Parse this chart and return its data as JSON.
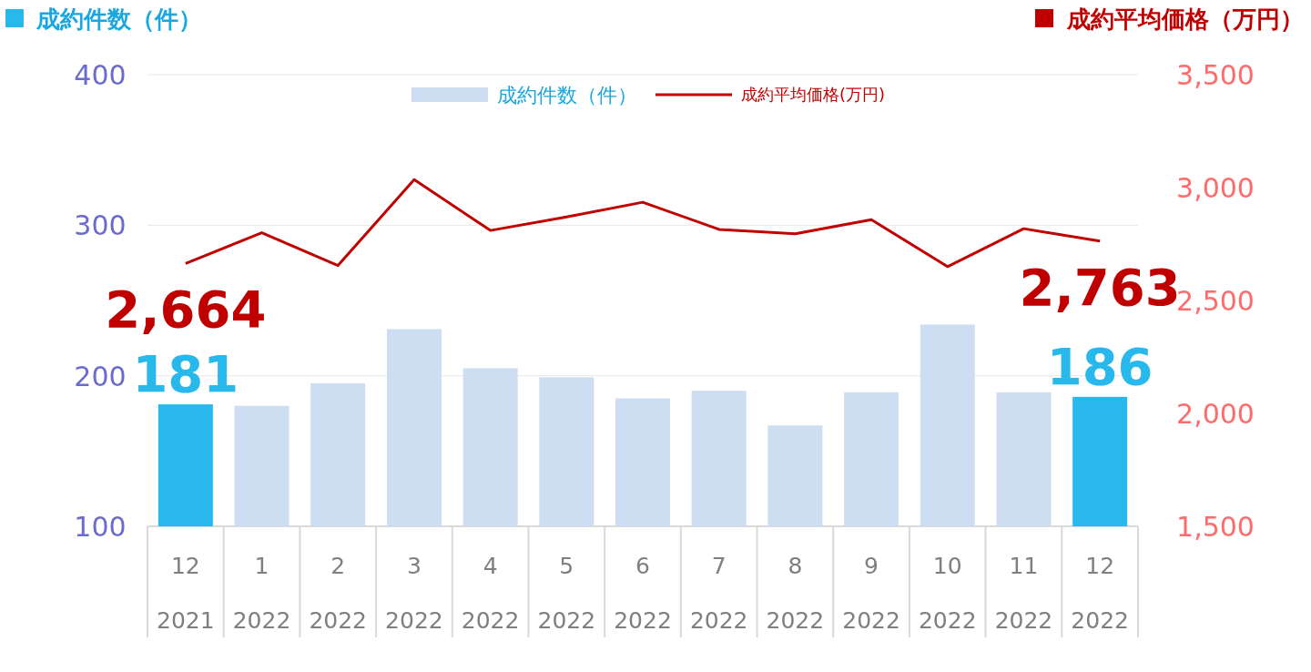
{
  "chart_data": {
    "type": "bar",
    "ylabel": "成約件数（件）",
    "y2label": "成約平均価格（万円）",
    "categories": [
      "12\n2021",
      "1\n2022",
      "2\n2022",
      "3\n2022",
      "4\n2022",
      "5\n2022",
      "6\n2022",
      "7\n2022",
      "8\n2022",
      "9\n2022",
      "10\n2022",
      "11\n2022",
      "12\n2022"
    ],
    "series": [
      {
        "name": "成約件数（件）",
        "color": "#cddef2",
        "colors": [
          "#29b8ec",
          "#cddef2",
          "#cddef2",
          "#cddef2",
          "#cddef2",
          "#cddef2",
          "#cddef2",
          "#cddef2",
          "#cddef2",
          "#cddef2",
          "#cddef2",
          "#cddef2",
          "#29b8ec"
        ],
        "values": [
          181,
          180,
          195,
          231,
          205,
          199,
          185,
          190,
          167,
          189,
          234,
          189,
          186
        ],
        "value_labels": [
          "181",
          null,
          null,
          null,
          null,
          null,
          null,
          null,
          null,
          null,
          null,
          null,
          "186"
        ]
      },
      {
        "name": "成約平均価格(万円)",
        "type": "line",
        "axis": "y2",
        "color": "#c00000",
        "values": [
          2664,
          2800,
          2655,
          3035,
          2810,
          2870,
          2935,
          2815,
          2795,
          2858,
          2650,
          2818,
          2763
        ],
        "value_labels": [
          "2,664",
          null,
          null,
          null,
          null,
          null,
          null,
          null,
          null,
          null,
          null,
          null,
          "2,763"
        ]
      }
    ],
    "ylim": [
      100,
      400
    ],
    "yticks": [
      100,
      200,
      300,
      400
    ],
    "y2lim": [
      1500,
      3500
    ],
    "y2ticks": [
      {
        "value": 1500,
        "label": "1,500"
      },
      {
        "value": 2000,
        "label": "2,000"
      },
      {
        "value": 2500,
        "label": "2,500"
      },
      {
        "value": 3000,
        "label": "3,000"
      },
      {
        "value": 3500,
        "label": "3,500"
      }
    ],
    "grid": "y",
    "legend": "top"
  }
}
